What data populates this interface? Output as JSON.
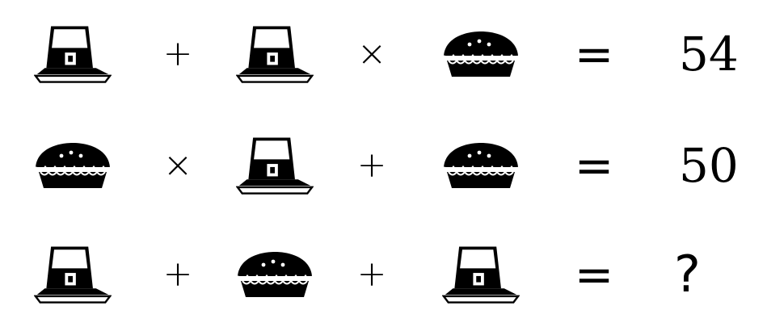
{
  "puzzle": {
    "icons": {
      "hat": "pilgrim-hat-icon",
      "pie": "pie-icon"
    },
    "rows": [
      {
        "terms": [
          "hat",
          "hat",
          "pie"
        ],
        "operators": [
          "+",
          "×"
        ],
        "equals": "=",
        "result": "54"
      },
      {
        "terms": [
          "pie",
          "hat",
          "pie"
        ],
        "operators": [
          "×",
          "+"
        ],
        "equals": "=",
        "result": "50"
      },
      {
        "terms": [
          "hat",
          "pie",
          "hat"
        ],
        "operators": [
          "+",
          "+"
        ],
        "equals": "=",
        "result": "?"
      }
    ]
  }
}
